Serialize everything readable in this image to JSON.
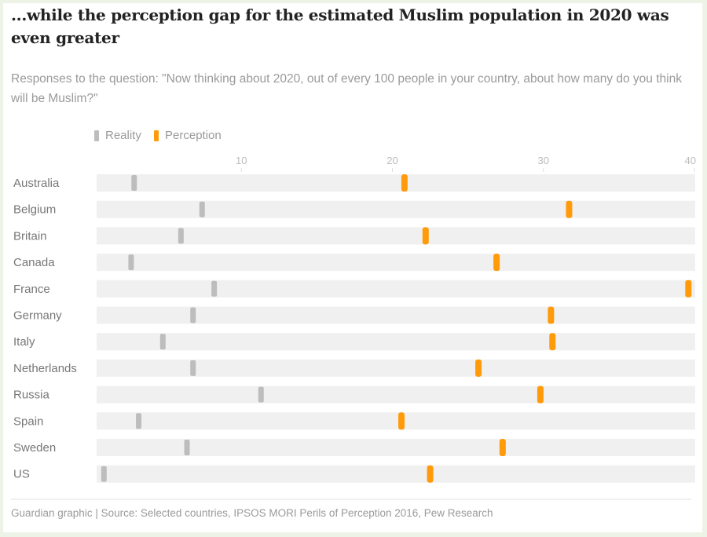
{
  "title": "...while the perception gap for the estimated Muslim population in 2020 was even greater",
  "subtitle": "Responses to the question: \"Now thinking about 2020, out of every 100 people in your country, about how many do you think will be Muslim?\"",
  "source": "Guardian graphic | Source: Selected countries, IPSOS MORI Perils of Perception 2016, Pew Research",
  "colors": {
    "reality": "#bdbdbd",
    "perception": "#ff9b0b",
    "track": "#f0f0f0"
  },
  "chart_data": {
    "type": "scatter",
    "title": "...while the perception gap for the estimated Muslim population in 2020 was even greater",
    "subtitle": "Responses to the question: \"Now thinking about 2020, out of every 100 people in your country, about how many do you think will be Muslim?\"",
    "xlabel": "",
    "ylabel": "",
    "xlim": [
      0,
      40
    ],
    "xticks": [
      10,
      20,
      30,
      40
    ],
    "legend_position": "top-left",
    "grid": false,
    "categories": [
      "Australia",
      "Belgium",
      "Britain",
      "Canada",
      "France",
      "Germany",
      "Italy",
      "Netherlands",
      "Russia",
      "Spain",
      "Sweden",
      "US"
    ],
    "series": [
      {
        "name": "Reality",
        "values": [
          2.9,
          7.4,
          6.0,
          2.7,
          8.2,
          6.8,
          4.8,
          6.8,
          11.3,
          3.2,
          6.4,
          0.9
        ]
      },
      {
        "name": "Perception",
        "values": [
          20.8,
          31.7,
          22.2,
          26.9,
          39.6,
          30.5,
          30.6,
          25.7,
          29.8,
          20.6,
          27.3,
          22.5
        ]
      }
    ]
  }
}
